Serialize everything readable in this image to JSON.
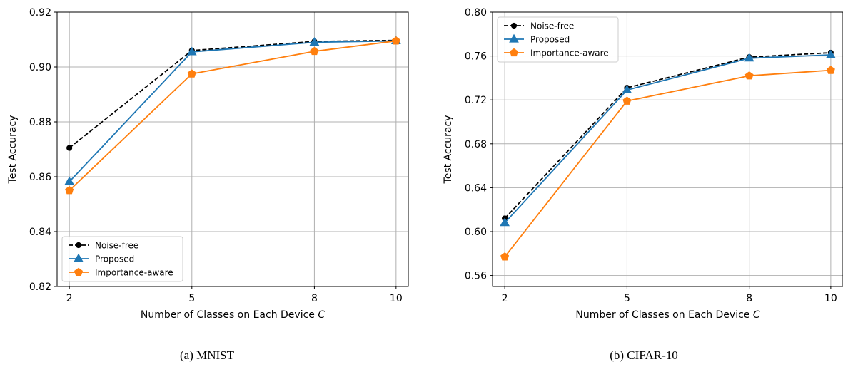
{
  "chart_data": [
    {
      "type": "line",
      "caption": "(a) MNIST",
      "xlabel": "Number of Classes on Each Device",
      "xlabel_var": "C",
      "ylabel": "Test Accuracy",
      "x": [
        2,
        5,
        8,
        10
      ],
      "x_tick_labels": [
        "2",
        "5",
        "8",
        "10"
      ],
      "xlim": [
        1.7,
        10.3
      ],
      "ylim": [
        0.82,
        0.92
      ],
      "y_ticks": [
        0.82,
        0.84,
        0.86,
        0.88,
        0.9,
        0.92
      ],
      "y_tick_labels": [
        "0.82",
        "0.84",
        "0.86",
        "0.88",
        "0.90",
        "0.92"
      ],
      "grid": true,
      "legend_position": "lower-left",
      "series": [
        {
          "name": "Noise-free",
          "color": "#000000",
          "marker": "circle",
          "dashed": true,
          "values": [
            0.8705,
            0.906,
            0.9093,
            0.9097
          ]
        },
        {
          "name": "Proposed",
          "color": "#1f77b4",
          "marker": "triangle",
          "dashed": false,
          "values": [
            0.8582,
            0.9055,
            0.909,
            0.9095
          ]
        },
        {
          "name": "Importance-aware",
          "color": "#ff7f0e",
          "marker": "pentagon",
          "dashed": false,
          "values": [
            0.855,
            0.8975,
            0.9057,
            0.9095
          ]
        }
      ]
    },
    {
      "type": "line",
      "caption": "(b) CIFAR-10",
      "xlabel": "Number of Classes on Each Device",
      "xlabel_var": "C",
      "ylabel": "Test Accuracy",
      "x": [
        2,
        5,
        8,
        10
      ],
      "x_tick_labels": [
        "2",
        "5",
        "8",
        "10"
      ],
      "xlim": [
        1.7,
        10.3
      ],
      "ylim": [
        0.55,
        0.8
      ],
      "y_ticks": [
        0.56,
        0.6,
        0.64,
        0.68,
        0.72,
        0.76,
        0.8
      ],
      "y_tick_labels": [
        "0.56",
        "0.60",
        "0.64",
        "0.68",
        "0.72",
        "0.76",
        "0.80"
      ],
      "grid": true,
      "legend_position": "upper-left",
      "series": [
        {
          "name": "Noise-free",
          "color": "#000000",
          "marker": "circle",
          "dashed": true,
          "values": [
            0.612,
            0.731,
            0.759,
            0.763
          ]
        },
        {
          "name": "Proposed",
          "color": "#1f77b4",
          "marker": "triangle",
          "dashed": false,
          "values": [
            0.608,
            0.729,
            0.758,
            0.761
          ]
        },
        {
          "name": "Importance-aware",
          "color": "#ff7f0e",
          "marker": "pentagon",
          "dashed": false,
          "values": [
            0.577,
            0.719,
            0.742,
            0.747
          ]
        }
      ]
    }
  ]
}
